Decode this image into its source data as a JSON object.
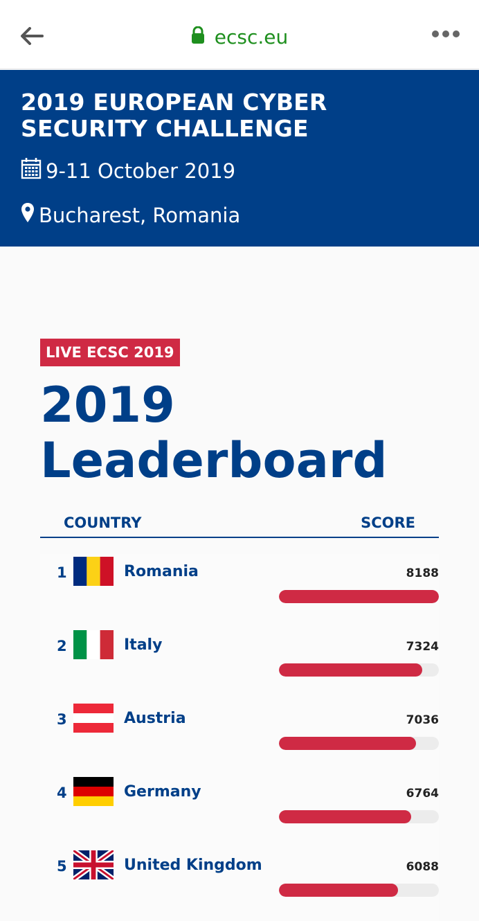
{
  "browser": {
    "url": "ecsc.eu",
    "back_icon": "back-arrow-icon",
    "lock_icon": "lock-icon",
    "menu_icon": "more-dots-icon"
  },
  "event": {
    "title": "2019 EUROPEAN CYBER SECURITY CHALLENGE",
    "date": "9-11 October 2019",
    "location": "Bucharest, Romania"
  },
  "leaderboard": {
    "badge": "LIVE ECSC 2019",
    "title_line1": "2019",
    "title_line2": "Leaderboard",
    "col_country": "COUNTRY",
    "col_score": "SCORE",
    "max_score": 8188,
    "rows": [
      {
        "rank": "1",
        "country": "Romania",
        "score": "8188",
        "flag": "romania-flag"
      },
      {
        "rank": "2",
        "country": "Italy",
        "score": "7324",
        "flag": "italy-flag"
      },
      {
        "rank": "3",
        "country": "Austria",
        "score": "7036",
        "flag": "austria-flag"
      },
      {
        "rank": "4",
        "country": "Germany",
        "score": "6764",
        "flag": "germany-flag"
      },
      {
        "rank": "5",
        "country": "United Kingdom",
        "score": "6088",
        "flag": "uk-flag"
      }
    ]
  },
  "colors": {
    "brand_blue": "#003f88",
    "accent_red": "#cf2a44",
    "url_green": "#1e8f1e"
  }
}
